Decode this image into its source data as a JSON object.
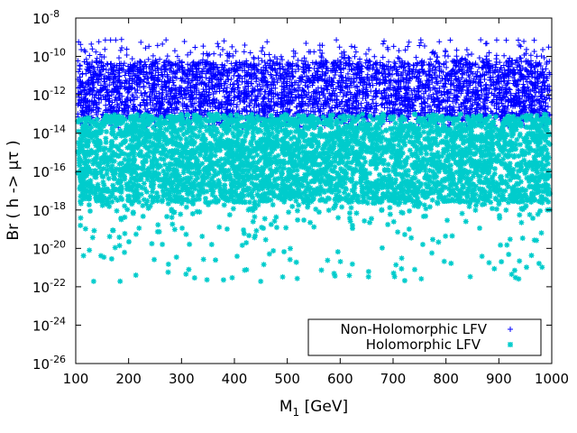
{
  "chart_data": {
    "type": "scatter",
    "title": "",
    "xlabel": "M",
    "xlabel_sub": "1",
    "xlabel_unit": " [GeV]",
    "ylabel": "Br ( h -> μτ )",
    "xlim": [
      100,
      1000
    ],
    "ylim_log10": [
      -26,
      -8
    ],
    "yscale": "log",
    "x_ticks": [
      100,
      200,
      300,
      400,
      500,
      600,
      700,
      800,
      900,
      1000
    ],
    "y_tick_base": "10",
    "y_tick_exponents": [
      "-26",
      "-24",
      "-22",
      "-20",
      "-18",
      "-16",
      "-14",
      "-12",
      "-10",
      "-8"
    ],
    "legend_position": "bottom-right",
    "series": [
      {
        "name": "Non-Holomorphic LFV",
        "marker": "+",
        "color": "#0000ff",
        "log10_br_core": [
          -13.2,
          -10.3
        ],
        "log10_br_min": -13.7,
        "log10_br_max": -9.1
      },
      {
        "name": "Holomorphic LFV",
        "marker": "*",
        "color": "#00cccc",
        "log10_br_core": [
          -17.6,
          -13.3
        ],
        "log10_br_min": -21.8,
        "log10_br_max": -13.0
      }
    ]
  }
}
